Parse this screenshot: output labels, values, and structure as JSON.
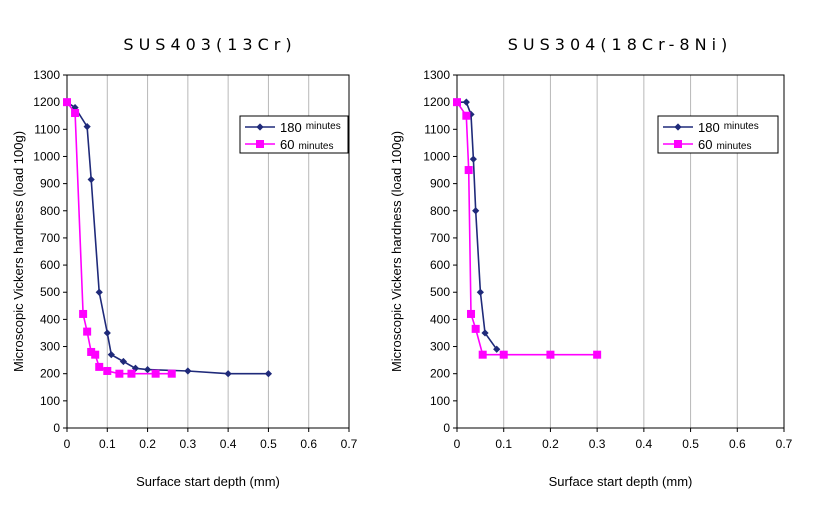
{
  "chart_data": [
    {
      "type": "line",
      "title": "SUS403(13Cr)",
      "xlabel": "Surface start depth (mm)",
      "ylabel": "Microscopic Vickers hardness (load 100g)",
      "xlim": [
        0,
        0.7
      ],
      "ylim": [
        0,
        1300
      ],
      "x_ticks": [
        "0",
        "0.1",
        "0.2",
        "0.3",
        "0.4",
        "0.5",
        "0.6",
        "0.7"
      ],
      "y_ticks": [
        "0",
        "100",
        "200",
        "300",
        "400",
        "500",
        "600",
        "700",
        "800",
        "900",
        "1000",
        "1100",
        "1200",
        "1300"
      ],
      "grid": "vertical",
      "legend": "top-right",
      "series": [
        {
          "name": "180 minutes",
          "name_main": "180",
          "name_sub": "minutes",
          "color": "#1f2a7a",
          "marker": "diamond",
          "x": [
            0,
            0.02,
            0.05,
            0.06,
            0.08,
            0.1,
            0.11,
            0.14,
            0.17,
            0.2,
            0.3,
            0.4,
            0.5
          ],
          "y": [
            1200,
            1180,
            1110,
            915,
            500,
            350,
            270,
            245,
            220,
            215,
            210,
            200,
            200
          ]
        },
        {
          "name": "60 minutes",
          "name_main": "60",
          "name_sub": "minutes",
          "color": "#ff00ff",
          "marker": "square",
          "x": [
            0,
            0.02,
            0.04,
            0.05,
            0.06,
            0.07,
            0.08,
            0.1,
            0.13,
            0.16,
            0.22,
            0.26
          ],
          "y": [
            1200,
            1160,
            420,
            355,
            280,
            270,
            225,
            210,
            200,
            200,
            200,
            200
          ]
        }
      ]
    },
    {
      "type": "line",
      "title": "SUS304(18Cr-8Ni)",
      "xlabel": "Surface start depth (mm)",
      "ylabel": "Microscopic Vickers hardness (load 100g)",
      "xlim": [
        0,
        0.7
      ],
      "ylim": [
        0,
        1300
      ],
      "x_ticks": [
        "0",
        "0.1",
        "0.2",
        "0.3",
        "0.4",
        "0.5",
        "0.6",
        "0.7"
      ],
      "y_ticks": [
        "0",
        "100",
        "200",
        "300",
        "400",
        "500",
        "600",
        "700",
        "800",
        "900",
        "1000",
        "1100",
        "1200",
        "1300"
      ],
      "grid": "vertical",
      "legend": "top-right",
      "series": [
        {
          "name": "180 minutes",
          "name_main": "180",
          "name_sub": "minutes",
          "color": "#1f2a7a",
          "marker": "diamond",
          "x": [
            0,
            0.02,
            0.03,
            0.035,
            0.04,
            0.05,
            0.06,
            0.085
          ],
          "y": [
            1200,
            1200,
            1155,
            990,
            800,
            500,
            350,
            290
          ]
        },
        {
          "name": "60 minutes",
          "name_main": "60",
          "name_sub": "minutes",
          "color": "#ff00ff",
          "marker": "square",
          "x": [
            0,
            0.02,
            0.025,
            0.03,
            0.04,
            0.055,
            0.1,
            0.2,
            0.3
          ],
          "y": [
            1200,
            1150,
            950,
            420,
            365,
            270,
            270,
            270,
            270
          ]
        }
      ]
    }
  ]
}
